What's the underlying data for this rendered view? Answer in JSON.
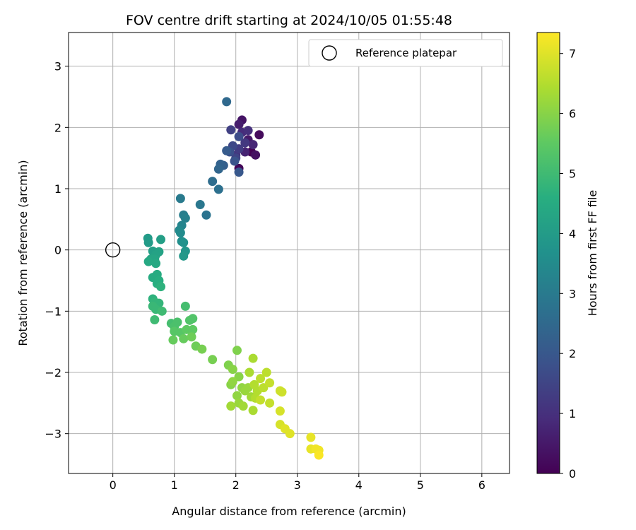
{
  "chart_data": {
    "type": "scatter",
    "title": "FOV centre drift starting at 2024/10/05 01:55:48",
    "xlabel": "Angular distance from reference (arcmin)",
    "ylabel": "Rotation from reference (arcmin)",
    "xlim": [
      -0.72,
      6.45
    ],
    "ylim": [
      -3.65,
      3.55
    ],
    "xticks": [
      0,
      1,
      2,
      3,
      4,
      5,
      6
    ],
    "yticks": [
      -3,
      -2,
      -1,
      0,
      1,
      2,
      3
    ],
    "grid": true,
    "legend_position": "top-right",
    "reference": {
      "name": "Reference platepar",
      "x": 0,
      "y": 0
    },
    "colorbar": {
      "label": "Hours from first FF file",
      "range": [
        0,
        7.35
      ],
      "ticks": [
        0,
        1,
        2,
        3,
        4,
        5,
        6,
        7
      ],
      "colormap": "viridis"
    },
    "points": [
      {
        "x": 2.25,
        "y": 1.6,
        "t": 0.0
      },
      {
        "x": 2.05,
        "y": 1.33,
        "t": 0.1
      },
      {
        "x": 2.38,
        "y": 1.88,
        "t": 0.2
      },
      {
        "x": 2.32,
        "y": 1.55,
        "t": 0.3
      },
      {
        "x": 2.1,
        "y": 2.12,
        "t": 0.4
      },
      {
        "x": 2.2,
        "y": 1.8,
        "t": 0.5
      },
      {
        "x": 2.05,
        "y": 2.05,
        "t": 0.6
      },
      {
        "x": 2.15,
        "y": 1.6,
        "t": 0.7
      },
      {
        "x": 2.28,
        "y": 1.72,
        "t": 0.8
      },
      {
        "x": 2.1,
        "y": 1.92,
        "t": 0.9
      },
      {
        "x": 2.2,
        "y": 1.95,
        "t": 1.0
      },
      {
        "x": 2.0,
        "y": 1.55,
        "t": 1.1
      },
      {
        "x": 2.15,
        "y": 1.75,
        "t": 1.2
      },
      {
        "x": 2.05,
        "y": 1.65,
        "t": 1.3
      },
      {
        "x": 1.92,
        "y": 1.96,
        "t": 1.4
      },
      {
        "x": 2.0,
        "y": 1.5,
        "t": 1.5
      },
      {
        "x": 1.95,
        "y": 1.7,
        "t": 1.6
      },
      {
        "x": 2.05,
        "y": 1.85,
        "t": 1.7
      },
      {
        "x": 1.9,
        "y": 1.6,
        "t": 1.8
      },
      {
        "x": 1.98,
        "y": 1.45,
        "t": 1.9
      },
      {
        "x": 2.05,
        "y": 1.27,
        "t": 2.0
      },
      {
        "x": 1.85,
        "y": 1.62,
        "t": 2.1
      },
      {
        "x": 1.8,
        "y": 1.38,
        "t": 2.2
      },
      {
        "x": 1.75,
        "y": 1.4,
        "t": 2.3
      },
      {
        "x": 1.72,
        "y": 1.32,
        "t": 2.4
      },
      {
        "x": 1.85,
        "y": 2.42,
        "t": 2.5
      },
      {
        "x": 1.62,
        "y": 1.12,
        "t": 2.6
      },
      {
        "x": 1.72,
        "y": 0.99,
        "t": 2.7
      },
      {
        "x": 1.52,
        "y": 0.57,
        "t": 2.8
      },
      {
        "x": 1.42,
        "y": 0.74,
        "t": 2.9
      },
      {
        "x": 1.1,
        "y": 0.84,
        "t": 3.0
      },
      {
        "x": 1.15,
        "y": 0.57,
        "t": 3.1
      },
      {
        "x": 1.18,
        "y": 0.52,
        "t": 3.2
      },
      {
        "x": 1.12,
        "y": 0.4,
        "t": 3.3
      },
      {
        "x": 1.08,
        "y": 0.32,
        "t": 3.4
      },
      {
        "x": 1.1,
        "y": 0.28,
        "t": 3.5
      },
      {
        "x": 1.12,
        "y": 0.14,
        "t": 3.6
      },
      {
        "x": 1.15,
        "y": 0.12,
        "t": 3.7
      },
      {
        "x": 1.18,
        "y": -0.02,
        "t": 3.8
      },
      {
        "x": 1.15,
        "y": -0.1,
        "t": 3.9
      },
      {
        "x": 0.57,
        "y": 0.19,
        "t": 4.0
      },
      {
        "x": 0.58,
        "y": 0.12,
        "t": 4.0
      },
      {
        "x": 0.78,
        "y": 0.17,
        "t": 4.1
      },
      {
        "x": 0.65,
        "y": -0.02,
        "t": 4.1
      },
      {
        "x": 0.75,
        "y": -0.03,
        "t": 4.2
      },
      {
        "x": 0.7,
        "y": -0.08,
        "t": 4.2
      },
      {
        "x": 0.62,
        "y": -0.15,
        "t": 4.3
      },
      {
        "x": 0.68,
        "y": -0.15,
        "t": 4.3
      },
      {
        "x": 0.58,
        "y": -0.19,
        "t": 4.4
      },
      {
        "x": 0.7,
        "y": -0.22,
        "t": 4.4
      },
      {
        "x": 0.65,
        "y": -0.45,
        "t": 4.5
      },
      {
        "x": 0.72,
        "y": -0.4,
        "t": 4.5
      },
      {
        "x": 0.75,
        "y": -0.5,
        "t": 4.6
      },
      {
        "x": 0.72,
        "y": -0.55,
        "t": 4.6
      },
      {
        "x": 0.78,
        "y": -0.6,
        "t": 4.7
      },
      {
        "x": 0.65,
        "y": -0.8,
        "t": 4.7
      },
      {
        "x": 0.68,
        "y": -0.85,
        "t": 4.8
      },
      {
        "x": 0.75,
        "y": -0.87,
        "t": 4.8
      },
      {
        "x": 0.65,
        "y": -0.92,
        "t": 4.9
      },
      {
        "x": 0.7,
        "y": -0.97,
        "t": 4.9
      },
      {
        "x": 0.8,
        "y": -1.0,
        "t": 5.0
      },
      {
        "x": 0.68,
        "y": -1.14,
        "t": 5.0
      },
      {
        "x": 1.18,
        "y": -0.92,
        "t": 5.1
      },
      {
        "x": 0.95,
        "y": -1.2,
        "t": 5.1
      },
      {
        "x": 1.05,
        "y": -1.18,
        "t": 5.2
      },
      {
        "x": 1.0,
        "y": -1.25,
        "t": 5.2
      },
      {
        "x": 1.3,
        "y": -1.12,
        "t": 5.3
      },
      {
        "x": 1.25,
        "y": -1.15,
        "t": 5.3
      },
      {
        "x": 1.0,
        "y": -1.33,
        "t": 5.4
      },
      {
        "x": 1.1,
        "y": -1.35,
        "t": 5.4
      },
      {
        "x": 1.2,
        "y": -1.3,
        "t": 5.5
      },
      {
        "x": 1.3,
        "y": -1.3,
        "t": 5.5
      },
      {
        "x": 0.98,
        "y": -1.47,
        "t": 5.6
      },
      {
        "x": 1.15,
        "y": -1.45,
        "t": 5.6
      },
      {
        "x": 1.28,
        "y": -1.42,
        "t": 5.7
      },
      {
        "x": 1.35,
        "y": -1.57,
        "t": 5.7
      },
      {
        "x": 1.45,
        "y": -1.62,
        "t": 5.8
      },
      {
        "x": 1.62,
        "y": -1.79,
        "t": 5.8
      },
      {
        "x": 2.02,
        "y": -1.64,
        "t": 5.9
      },
      {
        "x": 1.88,
        "y": -1.88,
        "t": 5.9
      },
      {
        "x": 1.95,
        "y": -1.95,
        "t": 6.0
      },
      {
        "x": 2.05,
        "y": -2.07,
        "t": 6.0
      },
      {
        "x": 1.92,
        "y": -2.2,
        "t": 6.0
      },
      {
        "x": 1.95,
        "y": -2.15,
        "t": 6.1
      },
      {
        "x": 2.02,
        "y": -2.38,
        "t": 6.1
      },
      {
        "x": 2.1,
        "y": -2.25,
        "t": 6.1
      },
      {
        "x": 2.15,
        "y": -2.3,
        "t": 6.2
      },
      {
        "x": 2.2,
        "y": -2.25,
        "t": 6.2
      },
      {
        "x": 2.05,
        "y": -2.5,
        "t": 6.2
      },
      {
        "x": 2.12,
        "y": -2.55,
        "t": 6.3
      },
      {
        "x": 1.92,
        "y": -2.55,
        "t": 6.3
      },
      {
        "x": 2.25,
        "y": -2.4,
        "t": 6.3
      },
      {
        "x": 2.28,
        "y": -2.62,
        "t": 6.4
      },
      {
        "x": 2.22,
        "y": -2.0,
        "t": 6.4
      },
      {
        "x": 2.28,
        "y": -1.77,
        "t": 6.4
      },
      {
        "x": 2.3,
        "y": -2.2,
        "t": 6.5
      },
      {
        "x": 2.35,
        "y": -2.3,
        "t": 6.5
      },
      {
        "x": 2.32,
        "y": -2.42,
        "t": 6.5
      },
      {
        "x": 2.4,
        "y": -2.1,
        "t": 6.6
      },
      {
        "x": 2.45,
        "y": -2.25,
        "t": 6.6
      },
      {
        "x": 2.5,
        "y": -2.0,
        "t": 6.6
      },
      {
        "x": 2.55,
        "y": -2.17,
        "t": 6.7
      },
      {
        "x": 2.55,
        "y": -2.5,
        "t": 6.7
      },
      {
        "x": 2.4,
        "y": -2.45,
        "t": 6.7
      },
      {
        "x": 2.72,
        "y": -2.3,
        "t": 6.8
      },
      {
        "x": 2.75,
        "y": -2.32,
        "t": 6.8
      },
      {
        "x": 2.72,
        "y": -2.63,
        "t": 6.9
      },
      {
        "x": 2.72,
        "y": -2.85,
        "t": 6.9
      },
      {
        "x": 2.8,
        "y": -2.92,
        "t": 7.0
      },
      {
        "x": 2.88,
        "y": -3.0,
        "t": 7.0
      },
      {
        "x": 3.22,
        "y": -3.06,
        "t": 7.1
      },
      {
        "x": 3.22,
        "y": -3.25,
        "t": 7.1
      },
      {
        "x": 3.3,
        "y": -3.25,
        "t": 7.2
      },
      {
        "x": 3.35,
        "y": -3.27,
        "t": 7.2
      },
      {
        "x": 3.35,
        "y": -3.35,
        "t": 7.3
      }
    ]
  }
}
